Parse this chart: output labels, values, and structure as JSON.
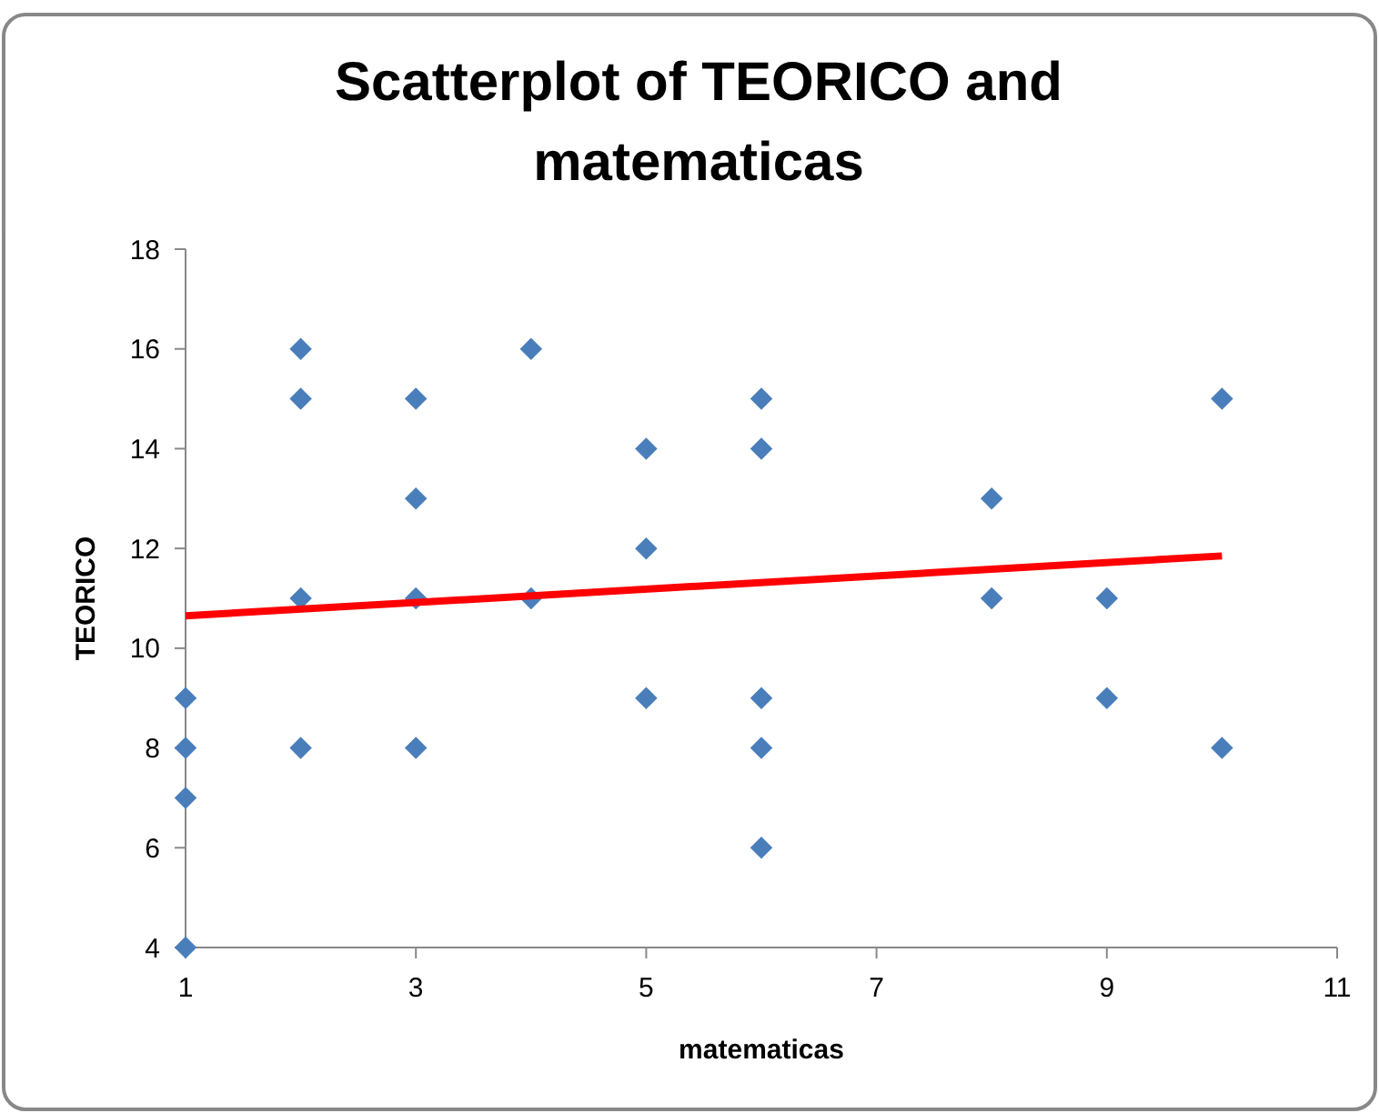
{
  "chart_data": {
    "type": "scatter",
    "title": "Scatterplot of TEORICO and matematicas",
    "xlabel": "matematicas",
    "ylabel": "TEORICO",
    "xlim": [
      1,
      11
    ],
    "xticks": [
      1,
      3,
      5,
      7,
      9,
      11
    ],
    "ylim": [
      4,
      18
    ],
    "yticks": [
      4,
      6,
      8,
      10,
      12,
      14,
      16,
      18
    ],
    "grid": false,
    "series": [
      {
        "marker": "diamond",
        "color": "#4a7ebb",
        "x": [
          1,
          1,
          1,
          1,
          2,
          2,
          2,
          2,
          3,
          3,
          3,
          3,
          4,
          4,
          5,
          5,
          5,
          6,
          6,
          6,
          6,
          6,
          8,
          8,
          9,
          9,
          10,
          10
        ],
        "values": [
          9,
          8,
          7,
          4,
          16,
          15,
          11,
          8,
          15,
          13,
          11,
          8,
          16,
          11,
          14,
          12,
          9,
          15,
          14,
          9,
          8,
          6,
          13,
          11,
          11,
          9,
          15,
          8
        ]
      },
      {
        "type": "line",
        "marker": "none",
        "color": "#ff0000",
        "x": [
          1,
          10
        ],
        "values": [
          10.65,
          11.85
        ]
      }
    ]
  }
}
